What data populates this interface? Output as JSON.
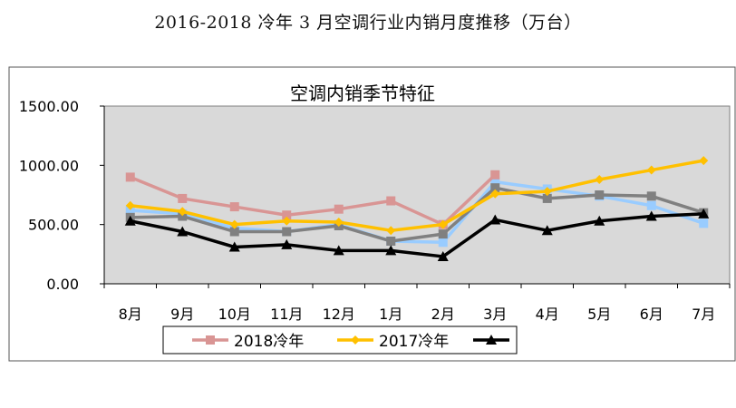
{
  "page_title": "2016-2018 冷年 3 月空调行业内销月度推移（万台）",
  "colors": {
    "plot_bg": "#d9d9d9",
    "s2018": "#d99594",
    "s2017": "#ffc000",
    "s2016": "#000000",
    "sBlue": "#99ccff",
    "sGray": "#808080"
  },
  "chart_data": {
    "type": "line",
    "title": "空调内销季节特征",
    "categories": [
      "8月",
      "9月",
      "10月",
      "11月",
      "12月",
      "1月",
      "2月",
      "3月",
      "4月",
      "5月",
      "6月",
      "7月"
    ],
    "y_ticks": [
      "0.00",
      "500.00",
      "1000.00",
      "1500.00"
    ],
    "ylim": [
      0,
      1500
    ],
    "grid": false,
    "legend_position": "bottom",
    "series": [
      {
        "name": "",
        "values": [
          620,
          590,
          470,
          440,
          500,
          360,
          350,
          860,
          800,
          740,
          660,
          510
        ]
      },
      {
        "name": "",
        "values": [
          560,
          570,
          440,
          440,
          490,
          360,
          420,
          810,
          720,
          750,
          740,
          600
        ]
      },
      {
        "name": "2018冷年",
        "values": [
          900,
          720,
          650,
          580,
          630,
          700,
          500,
          920,
          null,
          null,
          null,
          null
        ]
      },
      {
        "name": "2017冷年",
        "values": [
          660,
          610,
          500,
          530,
          520,
          450,
          500,
          760,
          780,
          880,
          960,
          1040
        ]
      },
      {
        "name": "",
        "values": [
          530,
          440,
          310,
          330,
          280,
          280,
          230,
          540,
          450,
          530,
          570,
          590
        ]
      }
    ]
  }
}
